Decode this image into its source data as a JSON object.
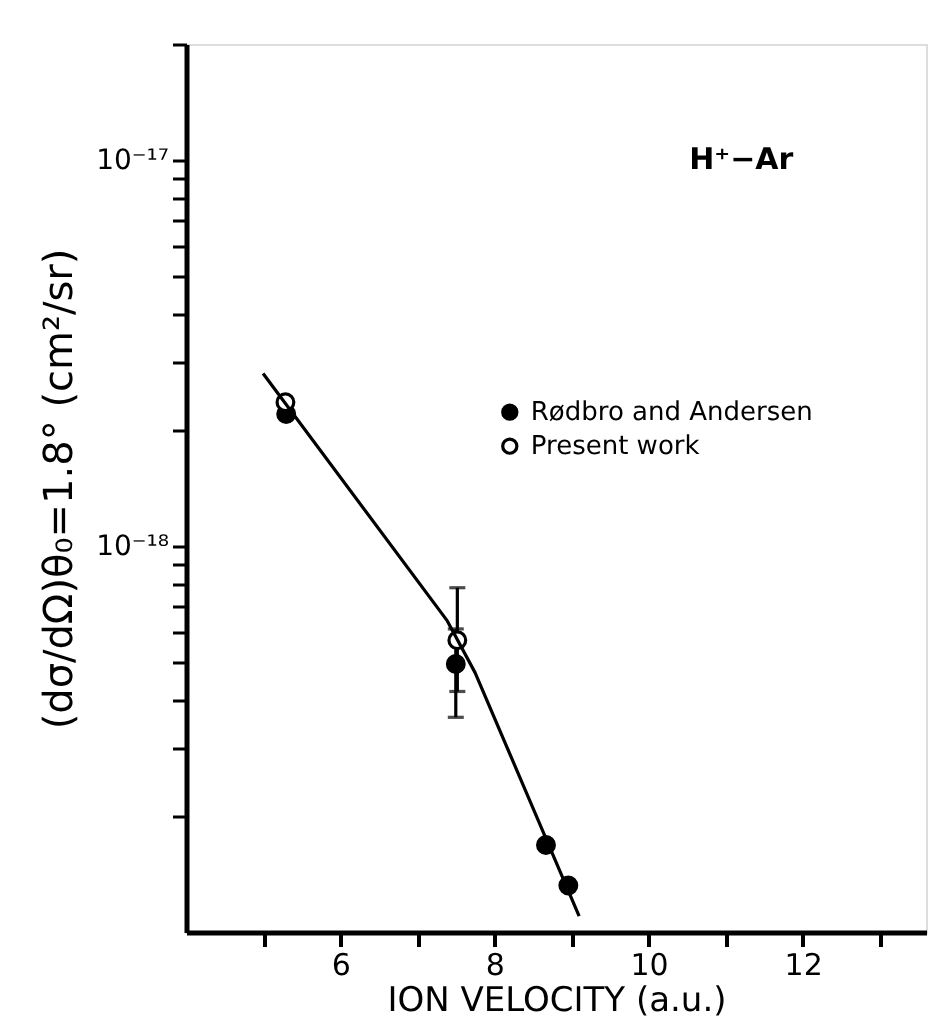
{
  "chart_data": {
    "type": "scatter",
    "xlabel": "ION VELOCITY (a.u.)",
    "ylabel": "(dσ/dΩ)θ₀=1.8° (cm²/sr)",
    "log": "y",
    "marker": "circle",
    "legend": "right",
    "grid": false,
    "xlim": [
      4,
      13.6
    ],
    "xticks": [
      {
        "value": 5,
        "label": null
      },
      6,
      {
        "value": 7,
        "label": null
      },
      8,
      {
        "value": 9,
        "label": null
      },
      10,
      {
        "value": 11,
        "label": null
      },
      12,
      {
        "value": 13,
        "label": null
      }
    ],
    "ylim": [
      1e-19,
      2e-17
    ],
    "yticks": [
      {
        "value": 2e-19,
        "label": null
      },
      {
        "value": 3e-19,
        "label": null
      },
      {
        "value": 4e-19,
        "label": null
      },
      {
        "value": 5e-19,
        "label": null
      },
      {
        "value": 6e-19,
        "label": null
      },
      {
        "value": 7e-19,
        "label": null
      },
      {
        "value": 8e-19,
        "label": null
      },
      {
        "value": 9e-19,
        "label": null
      },
      {
        "value": 1e-18,
        "label": "10⁻¹⁸"
      },
      {
        "value": 2e-18,
        "label": null
      },
      {
        "value": 3e-18,
        "label": null
      },
      {
        "value": 4e-18,
        "label": null
      },
      {
        "value": 5e-18,
        "label": null
      },
      {
        "value": 6e-18,
        "label": null
      },
      {
        "value": 7e-18,
        "label": null
      },
      {
        "value": 8e-18,
        "label": null
      },
      {
        "value": 9e-18,
        "label": null
      },
      {
        "value": 1e-17,
        "label": "10⁻¹⁷"
      },
      {
        "value": 2e-17,
        "label": null
      }
    ],
    "annotations": [
      "H⁺−Ar"
    ],
    "series": [
      {
        "name": "Rødbro and Andersen",
        "color": "#000000",
        "x": [
          5.3,
          7.5,
          8.67,
          8.96
        ],
        "values": [
          2.2e-18,
          4.95e-19,
          1.68e-19,
          1.32e-19
        ],
        "errors": [
          null,
          [
            3.6e-19,
            6.1e-19
          ],
          null,
          null
        ]
      },
      {
        "name": "Present work",
        "color": "#ffffff",
        "x": [
          5.29,
          7.52
        ],
        "values": [
          2.36e-18,
          5.7e-19
        ],
        "errors": [
          null,
          [
            4.2e-19,
            7.8e-19
          ]
        ]
      },
      {
        "color": "#000000",
        "type": "line",
        "marker": "none",
        "x": [
          5.0,
          7.39,
          7.75,
          9.1
        ],
        "values": [
          2.8e-18,
          6.4e-19,
          4.7e-19,
          1.1e-19
        ]
      }
    ]
  }
}
